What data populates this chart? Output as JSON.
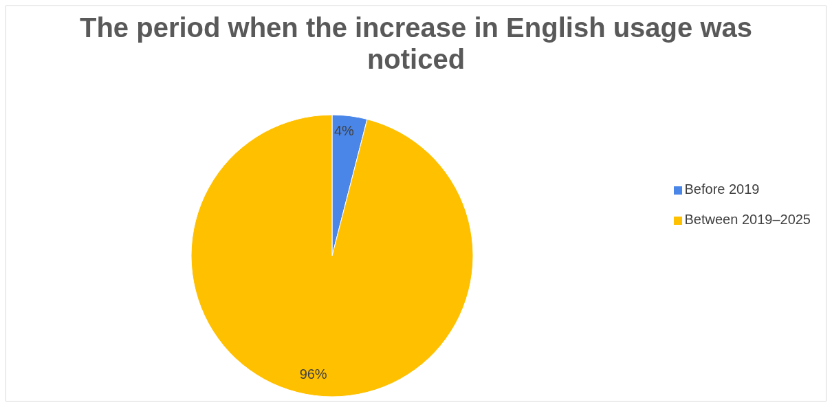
{
  "chart_data": {
    "type": "pie",
    "title": "The period when the increase in English usage was noticed",
    "categories": [
      "Before 2019",
      "Between 2019–2025"
    ],
    "values": [
      4,
      96
    ],
    "colors": [
      "#4a86e8",
      "#ffc000"
    ],
    "value_labels": [
      "4%",
      "96%"
    ],
    "legend": "right"
  }
}
